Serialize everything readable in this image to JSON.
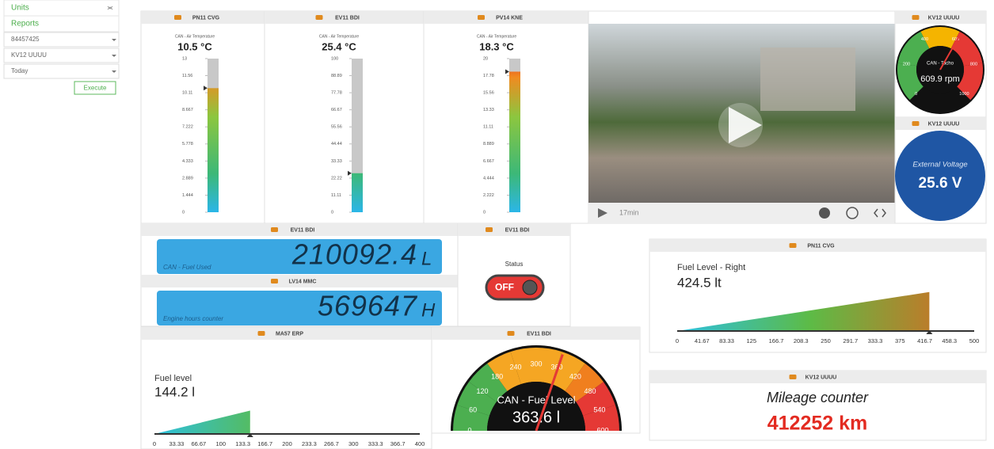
{
  "sidebar": {
    "menu": [
      "Units",
      "Reports"
    ],
    "fields": [
      "84457425",
      "KV12 UUUU",
      "Today"
    ],
    "button": "Execute"
  },
  "thermometers": [
    {
      "title": "PN11 CVG",
      "caption": "CAN - Air Temperature",
      "reading": {
        "value": 10.5,
        "label": "10.5 °C"
      },
      "ticks": [
        13,
        11.56,
        10.11,
        8.667,
        7.222,
        5.778,
        4.333,
        2.889,
        1.444,
        0
      ]
    },
    {
      "title": "EV11 BDI",
      "caption": "CAN - Air Temperature",
      "reading": {
        "value": 25.4,
        "label": "25.4 °C"
      },
      "ticks": [
        100,
        88.89,
        77.78,
        66.67,
        55.56,
        44.44,
        33.33,
        22.22,
        11.11,
        0
      ]
    },
    {
      "title": "PV14 KNE",
      "caption": "CAN - Air Temperature",
      "reading": {
        "value": 18.3,
        "label": "18.3 °C"
      },
      "ticks": [
        20,
        17.78,
        15.56,
        13.33,
        11.11,
        8.889,
        6.667,
        4.444,
        2.222,
        0
      ]
    }
  ],
  "video": {
    "duration": "17min"
  },
  "tacho": {
    "title": "KV12 UUUU",
    "caption": "CAN - Tacho",
    "reading": {
      "value": 609.9,
      "label": "609.9 rpm"
    },
    "ticks": [
      0,
      200,
      400,
      600,
      800,
      1000
    ]
  },
  "voltage": {
    "title": "KV12 UUUU",
    "caption": "External Voltage",
    "reading": "25.6 V"
  },
  "fuel_used": {
    "title": "EV11 BDI",
    "caption": "CAN - Fuel Used",
    "value": "210092.4",
    "unit": "L"
  },
  "engine_hours": {
    "title": "LV14 MMC",
    "caption": "Engine hours counter",
    "value": "569647",
    "unit": "H"
  },
  "status": {
    "title": "EV11 BDI",
    "caption": "Status",
    "state": "OFF"
  },
  "fuel_right": {
    "title": "PN11 CVG",
    "caption": "Fuel Level - Right",
    "reading": {
      "value": 424.5,
      "label": "424.5 lt"
    },
    "ticks": [
      0,
      41.67,
      83.33,
      125,
      166.7,
      208.3,
      250,
      291.7,
      333.3,
      375,
      416.7,
      458.3,
      500
    ]
  },
  "mileage": {
    "title": "KV12 UUUU",
    "caption": "Mileage counter",
    "value": "412252 km"
  },
  "fuel_left": {
    "title": "MA57 ERP",
    "caption": "Fuel level",
    "reading": {
      "value": 144.2,
      "label": "144.2 l"
    },
    "ticks": [
      0,
      33.33,
      66.67,
      100,
      133.3,
      166.7,
      200,
      233.3,
      266.7,
      300,
      333.3,
      366.7,
      400
    ]
  },
  "fuel_gauge": {
    "title": "EV11 BDI",
    "caption": "CAN - Fuel Level",
    "reading": {
      "value": 363.6,
      "label": "363.6 l"
    },
    "ticks": [
      0,
      60,
      120,
      180,
      240,
      300,
      360,
      420,
      480,
      540,
      600
    ]
  }
}
